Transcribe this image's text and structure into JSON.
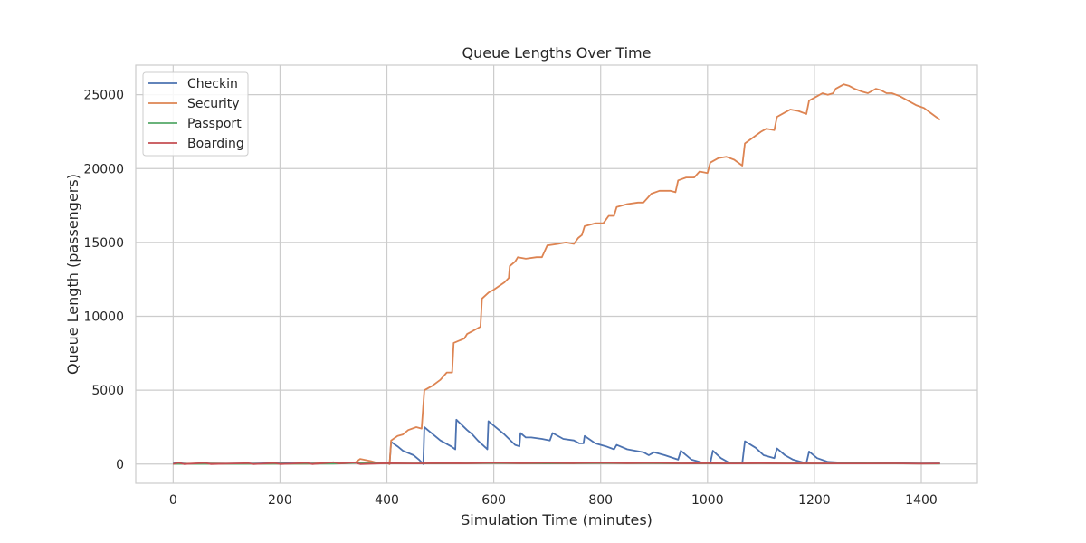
{
  "chart_data": {
    "type": "line",
    "title": "Queue Lengths Over Time",
    "xlabel": "Simulation Time (minutes)",
    "ylabel": "Queue Length (passengers)",
    "xlim": [
      -70,
      1505
    ],
    "ylim": [
      -1300,
      27000
    ],
    "xticks": [
      0,
      200,
      400,
      600,
      800,
      1000,
      1200,
      1400
    ],
    "yticks": [
      0,
      5000,
      10000,
      15000,
      20000,
      25000
    ],
    "grid": true,
    "legend_position": "top-left",
    "series": [
      {
        "name": "Checkin",
        "color": "#4c72b0",
        "points": [
          [
            0,
            50
          ],
          [
            10,
            60
          ],
          [
            30,
            20
          ],
          [
            60,
            50
          ],
          [
            100,
            30
          ],
          [
            150,
            40
          ],
          [
            190,
            60
          ],
          [
            250,
            40
          ],
          [
            300,
            60
          ],
          [
            350,
            80
          ],
          [
            400,
            80
          ],
          [
            405,
            0
          ],
          [
            408,
            1500
          ],
          [
            420,
            1200
          ],
          [
            430,
            900
          ],
          [
            450,
            600
          ],
          [
            460,
            300
          ],
          [
            468,
            0
          ],
          [
            470,
            2500
          ],
          [
            480,
            2200
          ],
          [
            500,
            1600
          ],
          [
            520,
            1200
          ],
          [
            528,
            1000
          ],
          [
            530,
            3000
          ],
          [
            550,
            2300
          ],
          [
            560,
            2000
          ],
          [
            570,
            1600
          ],
          [
            585,
            1100
          ],
          [
            588,
            1000
          ],
          [
            590,
            2900
          ],
          [
            600,
            2600
          ],
          [
            610,
            2300
          ],
          [
            620,
            2000
          ],
          [
            640,
            1300
          ],
          [
            648,
            1200
          ],
          [
            650,
            2100
          ],
          [
            660,
            1800
          ],
          [
            670,
            1800
          ],
          [
            690,
            1700
          ],
          [
            705,
            1600
          ],
          [
            710,
            2100
          ],
          [
            730,
            1700
          ],
          [
            750,
            1600
          ],
          [
            760,
            1400
          ],
          [
            768,
            1400
          ],
          [
            770,
            1900
          ],
          [
            790,
            1400
          ],
          [
            810,
            1200
          ],
          [
            825,
            1000
          ],
          [
            830,
            1300
          ],
          [
            850,
            1000
          ],
          [
            880,
            800
          ],
          [
            890,
            600
          ],
          [
            900,
            800
          ],
          [
            920,
            600
          ],
          [
            945,
            300
          ],
          [
            950,
            900
          ],
          [
            970,
            300
          ],
          [
            990,
            100
          ],
          [
            1005,
            50
          ],
          [
            1010,
            900
          ],
          [
            1025,
            400
          ],
          [
            1040,
            100
          ],
          [
            1065,
            50
          ],
          [
            1070,
            1550
          ],
          [
            1090,
            1100
          ],
          [
            1105,
            600
          ],
          [
            1125,
            400
          ],
          [
            1130,
            1050
          ],
          [
            1145,
            600
          ],
          [
            1160,
            300
          ],
          [
            1185,
            50
          ],
          [
            1190,
            850
          ],
          [
            1205,
            400
          ],
          [
            1225,
            150
          ],
          [
            1250,
            100
          ],
          [
            1300,
            50
          ],
          [
            1350,
            60
          ],
          [
            1400,
            40
          ],
          [
            1435,
            50
          ]
        ]
      },
      {
        "name": "Security",
        "color": "#dd8452",
        "points": [
          [
            0,
            20
          ],
          [
            50,
            40
          ],
          [
            100,
            30
          ],
          [
            150,
            20
          ],
          [
            200,
            30
          ],
          [
            250,
            20
          ],
          [
            300,
            100
          ],
          [
            340,
            80
          ],
          [
            350,
            350
          ],
          [
            370,
            200
          ],
          [
            385,
            50
          ],
          [
            395,
            60
          ],
          [
            400,
            80
          ],
          [
            405,
            0
          ],
          [
            408,
            1600
          ],
          [
            420,
            1900
          ],
          [
            430,
            2000
          ],
          [
            440,
            2300
          ],
          [
            455,
            2500
          ],
          [
            465,
            2400
          ],
          [
            470,
            5000
          ],
          [
            485,
            5300
          ],
          [
            500,
            5700
          ],
          [
            512,
            6200
          ],
          [
            522,
            6200
          ],
          [
            525,
            8200
          ],
          [
            545,
            8500
          ],
          [
            550,
            8800
          ],
          [
            560,
            9000
          ],
          [
            575,
            9300
          ],
          [
            578,
            11200
          ],
          [
            590,
            11600
          ],
          [
            600,
            11800
          ],
          [
            620,
            12300
          ],
          [
            628,
            12600
          ],
          [
            630,
            13400
          ],
          [
            640,
            13700
          ],
          [
            645,
            14000
          ],
          [
            660,
            13900
          ],
          [
            680,
            14000
          ],
          [
            690,
            14000
          ],
          [
            700,
            14800
          ],
          [
            720,
            14900
          ],
          [
            735,
            15000
          ],
          [
            750,
            14900
          ],
          [
            758,
            15300
          ],
          [
            765,
            15500
          ],
          [
            770,
            16100
          ],
          [
            790,
            16300
          ],
          [
            805,
            16300
          ],
          [
            815,
            16800
          ],
          [
            825,
            16800
          ],
          [
            830,
            17400
          ],
          [
            850,
            17600
          ],
          [
            870,
            17700
          ],
          [
            880,
            17700
          ],
          [
            895,
            18300
          ],
          [
            910,
            18500
          ],
          [
            930,
            18500
          ],
          [
            940,
            18400
          ],
          [
            945,
            19200
          ],
          [
            960,
            19400
          ],
          [
            975,
            19400
          ],
          [
            985,
            19800
          ],
          [
            1000,
            19700
          ],
          [
            1005,
            20400
          ],
          [
            1020,
            20700
          ],
          [
            1035,
            20800
          ],
          [
            1050,
            20600
          ],
          [
            1065,
            20200
          ],
          [
            1070,
            21700
          ],
          [
            1085,
            22100
          ],
          [
            1100,
            22500
          ],
          [
            1110,
            22700
          ],
          [
            1125,
            22600
          ],
          [
            1130,
            23500
          ],
          [
            1145,
            23800
          ],
          [
            1155,
            24000
          ],
          [
            1170,
            23900
          ],
          [
            1185,
            23700
          ],
          [
            1190,
            24600
          ],
          [
            1205,
            24900
          ],
          [
            1215,
            25100
          ],
          [
            1225,
            25000
          ],
          [
            1235,
            25100
          ],
          [
            1240,
            25400
          ],
          [
            1255,
            25700
          ],
          [
            1265,
            25600
          ],
          [
            1275,
            25400
          ],
          [
            1290,
            25200
          ],
          [
            1300,
            25100
          ],
          [
            1315,
            25400
          ],
          [
            1325,
            25300
          ],
          [
            1335,
            25100
          ],
          [
            1345,
            25100
          ],
          [
            1360,
            24900
          ],
          [
            1375,
            24600
          ],
          [
            1390,
            24300
          ],
          [
            1405,
            24100
          ],
          [
            1420,
            23700
          ],
          [
            1435,
            23300
          ]
        ]
      },
      {
        "name": "Passport",
        "color": "#55a868",
        "points": [
          [
            0,
            10
          ],
          [
            100,
            10
          ],
          [
            200,
            20
          ],
          [
            300,
            30
          ],
          [
            350,
            80
          ],
          [
            400,
            50
          ],
          [
            500,
            40
          ],
          [
            600,
            60
          ],
          [
            700,
            40
          ],
          [
            800,
            60
          ],
          [
            900,
            50
          ],
          [
            1000,
            40
          ],
          [
            1100,
            50
          ],
          [
            1200,
            40
          ],
          [
            1300,
            50
          ],
          [
            1435,
            30
          ]
        ]
      },
      {
        "name": "Boarding",
        "color": "#c44e52",
        "points": [
          [
            0,
            0
          ],
          [
            10,
            90
          ],
          [
            20,
            0
          ],
          [
            60,
            80
          ],
          [
            70,
            0
          ],
          [
            140,
            60
          ],
          [
            150,
            0
          ],
          [
            190,
            70
          ],
          [
            200,
            0
          ],
          [
            250,
            80
          ],
          [
            260,
            0
          ],
          [
            300,
            120
          ],
          [
            310,
            40
          ],
          [
            340,
            100
          ],
          [
            350,
            0
          ],
          [
            400,
            60
          ],
          [
            450,
            40
          ],
          [
            500,
            60
          ],
          [
            550,
            50
          ],
          [
            600,
            90
          ],
          [
            650,
            60
          ],
          [
            700,
            80
          ],
          [
            750,
            60
          ],
          [
            800,
            90
          ],
          [
            850,
            60
          ],
          [
            900,
            80
          ],
          [
            950,
            50
          ],
          [
            1000,
            60
          ],
          [
            1050,
            40
          ],
          [
            1100,
            60
          ],
          [
            1150,
            40
          ],
          [
            1200,
            50
          ],
          [
            1250,
            40
          ],
          [
            1300,
            40
          ],
          [
            1350,
            50
          ],
          [
            1400,
            30
          ],
          [
            1435,
            40
          ]
        ]
      }
    ]
  }
}
